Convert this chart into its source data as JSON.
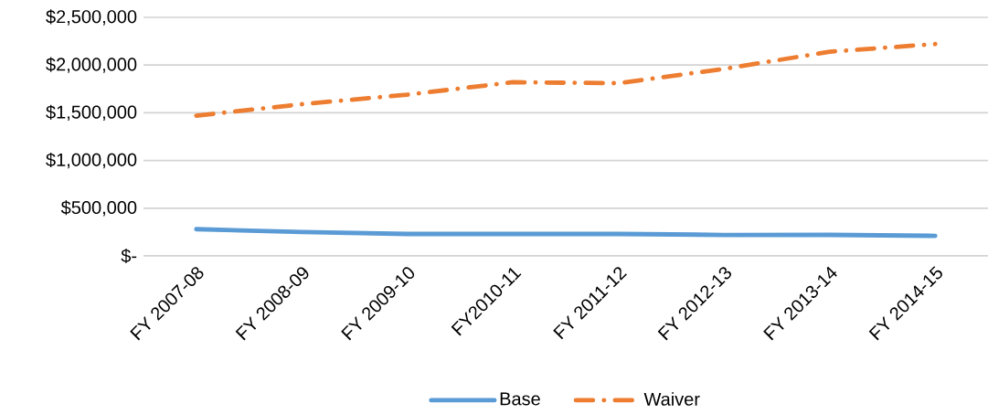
{
  "chart_data": {
    "type": "line",
    "categories": [
      "FY 2007-08",
      "FY 2008-09",
      "FY 2009-10",
      "FY2010-11",
      "FY 2011-12",
      "FY 2012-13",
      "FY 2013-14",
      "FY 2014-15"
    ],
    "series": [
      {
        "name": "Base",
        "color": "#5b9bd5",
        "line_style": "solid",
        "values": [
          280000,
          250000,
          230000,
          230000,
          230000,
          220000,
          220000,
          210000
        ]
      },
      {
        "name": "Waiver",
        "color": "#ed7d31",
        "line_style": "dashed",
        "values": [
          1470000,
          1590000,
          1690000,
          1820000,
          1810000,
          1960000,
          2140000,
          2220000
        ]
      }
    ],
    "ylim": [
      0,
      2500000
    ],
    "yticks": [
      {
        "value": 0,
        "label": "$-"
      },
      {
        "value": 500000,
        "label": "$500,000"
      },
      {
        "value": 1000000,
        "label": "$1,000,000"
      },
      {
        "value": 1500000,
        "label": "$1,500,000"
      },
      {
        "value": 2000000,
        "label": "$2,000,000"
      },
      {
        "value": 2500000,
        "label": "$2,500,000"
      }
    ],
    "grid": "y",
    "legend": "bottom",
    "marker": "none"
  }
}
